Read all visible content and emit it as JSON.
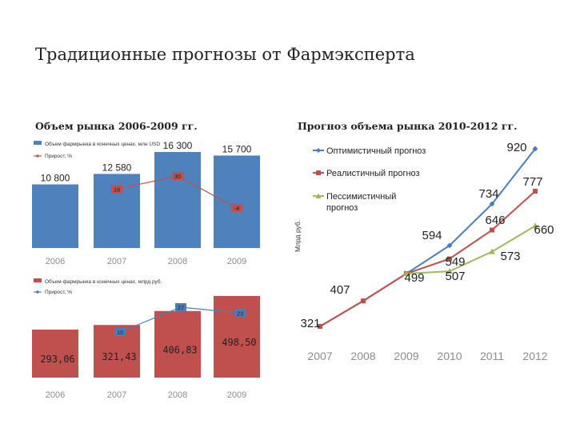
{
  "slide": {
    "title": "Традиционные прогнозы от Фармэксперта",
    "left_subtitle": "Объем рынка 2006-2009 гг.",
    "right_subtitle": "Прогноз объема рынка 2010-2012 гг."
  },
  "colors": {
    "blue_bar": "#4f81bd",
    "red_line": "#c0504d",
    "green_line": "#9bbb59",
    "blue_line": "#4a7ebb",
    "axis_text": "#8c8c8c"
  },
  "chart_data": [
    {
      "type": "bar",
      "categories": [
        "2006",
        "2007",
        "2008",
        "2009"
      ],
      "series": [
        {
          "name": "Объем фармрынка в конечных ценах, млн USD",
          "kind": "bar",
          "values": [
            10800,
            12580,
            16300,
            15700
          ],
          "labels": [
            "10 800",
            "12 580",
            "16 300",
            "15 700"
          ]
        },
        {
          "name": "Прирост, %",
          "kind": "line",
          "values": [
            16,
            30,
            -4
          ],
          "x": [
            "2007",
            "2008",
            "2009"
          ],
          "labels": [
            "16",
            "30",
            "-4"
          ]
        }
      ],
      "ylim": [
        0,
        18000
      ],
      "legend": "top-left"
    },
    {
      "type": "bar",
      "categories": [
        "2006",
        "2007",
        "2008",
        "2009"
      ],
      "series": [
        {
          "name": "Объем фармрынка в конечных ценах, млрд руб.",
          "kind": "bar",
          "values": [
            293.06,
            321.43,
            406.83,
            498.5
          ],
          "labels": [
            "293,06",
            "321,43",
            "406,83",
            "498,50"
          ]
        },
        {
          "name": "Прирост, %",
          "kind": "line",
          "values": [
            10,
            27,
            23
          ],
          "x": [
            "2007",
            "2008",
            "2009"
          ],
          "labels": [
            "10",
            "27",
            "23"
          ]
        }
      ],
      "ylim": [
        0,
        600
      ],
      "legend": "top-left"
    },
    {
      "type": "line",
      "categories": [
        "2007",
        "2008",
        "2009",
        "2010",
        "2011",
        "2012"
      ],
      "ylabel": "Млрд руб.",
      "ylim": [
        300,
        950
      ],
      "series": [
        {
          "name": "Оптимистичный прогноз",
          "values": [
            321,
            407,
            499,
            594,
            734,
            920
          ]
        },
        {
          "name": "Реалистичный прогноз",
          "values": [
            321,
            407,
            499,
            549,
            646,
            777
          ]
        },
        {
          "name": "Пессимистичный прогноз",
          "values": [
            null,
            null,
            499,
            507,
            573,
            660
          ]
        }
      ],
      "point_labels": [
        "321",
        "407",
        "499",
        "594",
        "549",
        "507",
        "734",
        "646",
        "573",
        "920",
        "777",
        "660"
      ],
      "legend": "top-left"
    }
  ]
}
